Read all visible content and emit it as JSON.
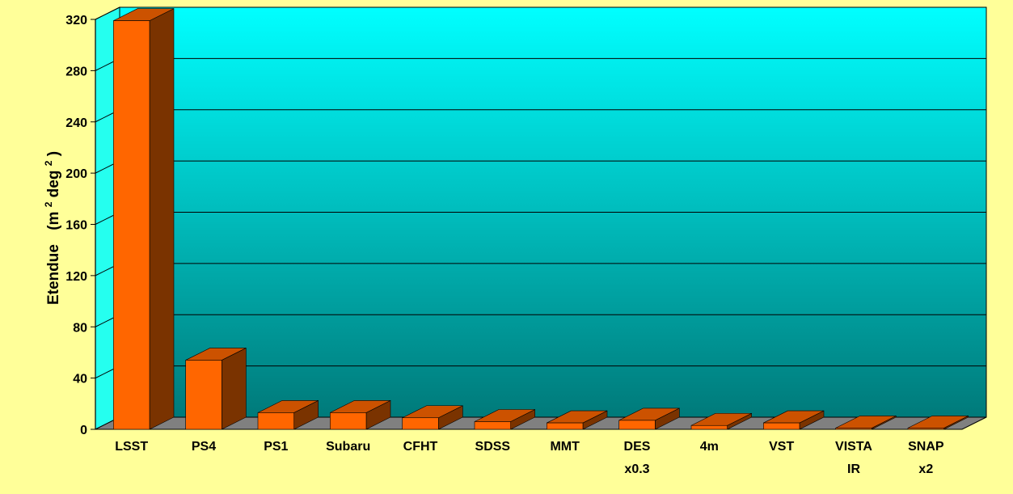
{
  "chart_data": {
    "type": "bar",
    "title": "",
    "ylabel": {
      "text": "Etendue",
      "unit_open": "(m",
      "unit_sup1": "2",
      "unit_mid": " deg",
      "unit_sup2": "2",
      "unit_close": ")"
    },
    "xlabel": "",
    "ylim": [
      0,
      320
    ],
    "yticks": [
      "0",
      "40",
      "80",
      "120",
      "160",
      "200",
      "240",
      "280",
      "320"
    ],
    "grid": true,
    "style": "3d-columns",
    "categories": [
      [
        "LSST"
      ],
      [
        "PS4"
      ],
      [
        "PS1"
      ],
      [
        "Subaru"
      ],
      [
        "CFHT"
      ],
      [
        "SDSS"
      ],
      [
        "MMT"
      ],
      [
        "DES",
        "x0.3"
      ],
      [
        "4m"
      ],
      [
        "VST"
      ],
      [
        "VISTA",
        "IR"
      ],
      [
        "SNAP",
        "x2"
      ]
    ],
    "values": [
      319,
      54,
      13,
      13,
      9,
      6,
      5,
      7,
      3,
      5,
      1,
      1
    ],
    "colors": {
      "bar_front": "#ff6600",
      "bar_top": "#cc5200",
      "bar_side": "#7a3300",
      "floor": "#808080",
      "background": "#ffff99",
      "plot_top": "#00ffff",
      "plot_bottom": "#007a7a",
      "gridline": "#000000"
    }
  }
}
